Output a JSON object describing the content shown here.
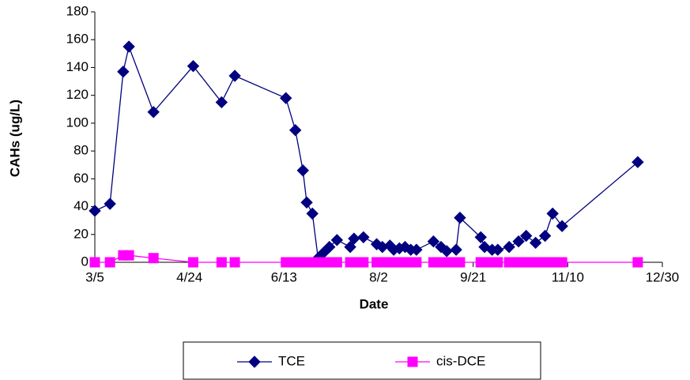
{
  "chart_data": {
    "type": "line",
    "x_label": "Date",
    "y_label": "CAHs (ug/L)",
    "x": [
      "3/5",
      "3/13",
      "3/20",
      "3/23",
      "4/5",
      "4/26",
      "5/11",
      "5/18",
      "6/14",
      "6/19",
      "6/23",
      "6/25",
      "6/28",
      "7/1",
      "7/4",
      "7/7",
      "7/11",
      "7/18",
      "7/20",
      "7/25",
      "8/1",
      "8/4",
      "8/8",
      "8/10",
      "8/13",
      "8/16",
      "8/19",
      "8/22",
      "8/31",
      "9/4",
      "9/7",
      "9/12",
      "9/14",
      "9/25",
      "9/27",
      "10/1",
      "10/4",
      "10/10",
      "10/15",
      "10/19",
      "10/24",
      "10/29",
      "11/2",
      "11/7",
      "12/17"
    ],
    "series": [
      {
        "name": "TCE",
        "color": "#000080",
        "marker": "diamond",
        "values": [
          37,
          42,
          137,
          155,
          108,
          141,
          115,
          134,
          118,
          95,
          66,
          43,
          35,
          3,
          7,
          11,
          16,
          11,
          17,
          18,
          13,
          11,
          12,
          9,
          10,
          11,
          9,
          9,
          15,
          11,
          8,
          9,
          32,
          18,
          11,
          9,
          9,
          11,
          15,
          19,
          14,
          19,
          35,
          26,
          72
        ]
      },
      {
        "name": "cis-DCE",
        "color": "#ff00ff",
        "marker": "square",
        "values": [
          0,
          0,
          5,
          5,
          3,
          0,
          0,
          0,
          0,
          0,
          0,
          0,
          0,
          0,
          0,
          0,
          0,
          0,
          0,
          0,
          0,
          0,
          0,
          0,
          0,
          0,
          0,
          0,
          0,
          0,
          0,
          0,
          0,
          0,
          0,
          0,
          0,
          0,
          0,
          0,
          0,
          0,
          0,
          0,
          0
        ]
      }
    ],
    "xlim": [
      "3/5",
      "12/30"
    ],
    "xticks": [
      "3/5",
      "4/24",
      "6/13",
      "8/2",
      "9/21",
      "11/10",
      "12/30"
    ],
    "ylim": [
      0,
      180
    ],
    "yticks": [
      0,
      20,
      40,
      60,
      80,
      100,
      120,
      140,
      160,
      180
    ],
    "grid": false,
    "legend": "bottom"
  }
}
